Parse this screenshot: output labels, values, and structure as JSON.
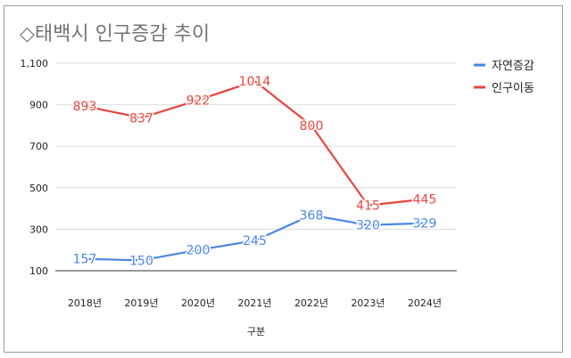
{
  "chart_data": {
    "type": "line",
    "title": "◇태백시 인구증감 추이",
    "xlabel": "구분",
    "ylabel": "",
    "categories": [
      "2018년",
      "2019년",
      "2020년",
      "2021년",
      "2022년",
      "2023년",
      "2024년"
    ],
    "ylim": [
      100,
      1100
    ],
    "yticks": [
      "100",
      "300",
      "500",
      "700",
      "900",
      "1,100"
    ],
    "ytick_values": [
      100,
      300,
      500,
      700,
      900,
      1100
    ],
    "grid": true,
    "legend_position": "right",
    "series": [
      {
        "name": "자연증감",
        "color": "#4a86e8",
        "values": [
          157,
          150,
          200,
          245,
          368,
          320,
          329
        ]
      },
      {
        "name": "인구이동",
        "color": "#e8453c",
        "values": [
          893,
          837,
          922,
          1014,
          800,
          415,
          445
        ]
      }
    ]
  }
}
